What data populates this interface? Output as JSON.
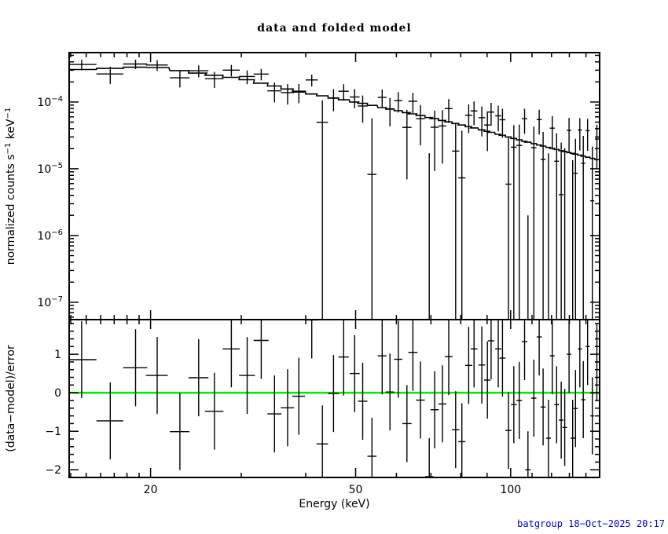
{
  "title": "data and folded model",
  "timestamp": "batgroup 18−Oct−2025 20:17",
  "colors": {
    "foreground": "#000000",
    "background": "#ffffff",
    "zero_line": "#00ee00",
    "timestamp": "#0000cc"
  },
  "ylabels": {
    "top": {
      "t1": "normalized counts s",
      "s1": "−1",
      "t2": " keV",
      "s2": "−1"
    },
    "bottom": "(data−model)/error"
  },
  "chart_data": {
    "type": "line",
    "title": "data and folded model",
    "xlabel": "Energy (keV)",
    "ylabel_top": "normalized counts s^-1 keV^-1",
    "ylabel_bottom": "(data-model)/error",
    "x_scale": "log",
    "x_range": [
      13.9,
      148.8
    ],
    "x_major_ticks": [
      20,
      50,
      100
    ],
    "x_major_labels": [
      "20",
      "50",
      "100"
    ],
    "x_minor_ticks": [
      14,
      15,
      16,
      17,
      18,
      19,
      30,
      40,
      60,
      70,
      80,
      90,
      110,
      120,
      130,
      140
    ],
    "grid": "off",
    "legend": "none",
    "top_panel": {
      "y_scale": "log",
      "y_range": [
        5.5e-08,
        0.00055
      ],
      "y_decade_ticks": [
        0.0001,
        1e-05,
        1e-06,
        1e-07
      ],
      "y_decade_exponents": [
        "−4",
        "−5",
        "−6",
        "−7"
      ]
    },
    "bottom_panel": {
      "y_scale": "linear",
      "y_range": [
        -2.2,
        1.9
      ],
      "y_major_ticks": [
        1,
        0,
        -1,
        -2
      ],
      "y_minor_step": 0.2,
      "zero_line": 0,
      "residual_error_halfwidth": 1
    },
    "points": {
      "energy_kev": [
        14.7,
        16.7,
        18.7,
        20.6,
        22.8,
        24.8,
        26.6,
        28.7,
        30.8,
        32.8,
        34.8,
        36.9,
        38.8,
        41.1,
        43.1,
        45.3,
        47.4,
        49.8,
        51.6,
        53.8,
        56.3,
        58.3,
        60.5,
        62.9,
        64.6,
        66.8,
        69.5,
        71.2,
        73.7,
        75.8,
        78.2,
        80.4,
        82.9,
        84.9,
        87.9,
        90.1,
        91.6,
        94.6,
        96.4,
        99.0,
        101.4,
        103.9,
        106.4,
        108.0,
        110.9,
        113.6,
        115.6,
        118.4,
        120.4,
        122.8,
        125.3,
        127.3,
        129.8,
        131.9,
        133.6,
        136.2,
        138.3,
        141.0,
        144.0,
        147.0
      ],
      "half_width_kev": [
        1.0,
        1.0,
        1.0,
        1.0,
        1.0,
        1.1,
        1.1,
        1.1,
        1.1,
        1.1,
        1.1,
        1.1,
        1.1,
        1.1,
        1.1,
        1.1,
        1.1,
        1.1,
        1.1,
        1.1,
        1.1,
        1.1,
        1.1,
        1.3,
        1.3,
        1.3,
        1.3,
        1.3,
        1.3,
        1.3,
        1.3,
        1.3,
        1.3,
        1.3,
        1.3,
        1.3,
        1.3,
        1.3,
        1.3,
        1.3,
        1.3,
        1.3,
        1.3,
        1.3,
        1.3,
        1.3,
        1.3,
        1.3,
        1.3,
        1.3,
        1.3,
        1.3,
        1.3,
        1.3,
        1.3,
        1.3,
        1.3,
        1.3,
        1.3,
        1.3
      ],
      "model": [
        0.000307,
        0.000319,
        0.000332,
        0.000329,
        0.000296,
        0.000271,
        0.000252,
        0.000234,
        0.000216,
        0.000192,
        0.000174,
        0.000157,
        0.000145,
        0.000132,
        0.000124,
        0.000115,
        0.000108,
        0.0001,
        9.56e-05,
        8.9e-05,
        8.26e-05,
        7.84e-05,
        7.42e-05,
        6.95e-05,
        6.64e-05,
        6.28e-05,
        5.86e-05,
        5.63e-05,
        5.3e-05,
        5.04e-05,
        4.77e-05,
        4.52e-05,
        4.28e-05,
        4.09e-05,
        3.83e-05,
        3.64e-05,
        3.52e-05,
        3.29e-05,
        3.17e-05,
        3e-05,
        2.85e-05,
        2.71e-05,
        2.58e-05,
        2.5e-05,
        2.38e-05,
        2.27e-05,
        2.19e-05,
        2.09e-05,
        2.02e-05,
        1.95e-05,
        1.87e-05,
        1.82e-05,
        1.75e-05,
        1.7e-05,
        1.66e-05,
        1.6e-05,
        1.55e-05,
        1.49e-05,
        1.43e-05,
        1.37e-05
      ],
      "relative_error": [
        0.22,
        0.24,
        0.18,
        0.2,
        0.22,
        0.22,
        0.24,
        0.25,
        0.26,
        0.27,
        0.28,
        0.3,
        0.31,
        0.33,
        0.45,
        0.36,
        0.37,
        0.38,
        0.4,
        0.55,
        0.44,
        0.46,
        0.48,
        0.5,
        0.52,
        0.54,
        0.6,
        0.58,
        0.6,
        0.62,
        0.64,
        0.66,
        0.68,
        0.7,
        0.72,
        0.74,
        0.75,
        0.78,
        0.79,
        0.82,
        0.84,
        0.87,
        0.89,
        0.92,
        0.94,
        0.97,
        1.0,
        1.03,
        1.05,
        1.08,
        1.1,
        1.12,
        1.15,
        1.17,
        1.18,
        1.21,
        1.23,
        1.25,
        1.28,
        1.3
      ],
      "residual_sigma": [
        0.86,
        -0.73,
        0.65,
        0.45,
        -1.01,
        0.39,
        -0.48,
        1.14,
        0.45,
        1.36,
        -0.55,
        -0.39,
        -0.09,
        1.89,
        -1.33,
        -0.02,
        0.93,
        0.5,
        -0.22,
        -1.65,
        0.96,
        0.02,
        0.87,
        -0.8,
        1.05,
        -0.19,
        -2.18,
        -0.44,
        -0.29,
        0.94,
        -0.96,
        -1.27,
        0.71,
        1.14,
        0.72,
        0.33,
        1.35,
        1.14,
        0.9,
        -0.98,
        -0.31,
        -0.2,
        1.33,
        -2.0,
        -0.14,
        1.45,
        -0.37,
        -1.18,
        0.96,
        -0.31,
        -0.71,
        -0.9,
        1.0,
        -1.18,
        -0.41,
        1.14,
        -0.18,
        1.2,
        -0.6,
        0.8
      ]
    }
  }
}
